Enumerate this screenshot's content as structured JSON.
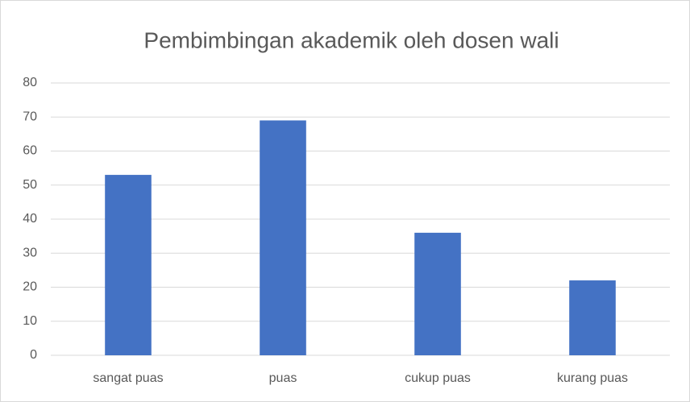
{
  "chart_data": {
    "type": "bar",
    "title": "Pembimbingan akademik oleh dosen wali",
    "categories": [
      "sangat puas",
      "puas",
      "cukup puas",
      "kurang puas"
    ],
    "values": [
      53,
      69,
      36,
      22
    ],
    "color": "#4472c4",
    "ylim": [
      0,
      80
    ],
    "yticks": [
      0,
      10,
      20,
      30,
      40,
      50,
      60,
      70,
      80
    ],
    "grid": true
  }
}
